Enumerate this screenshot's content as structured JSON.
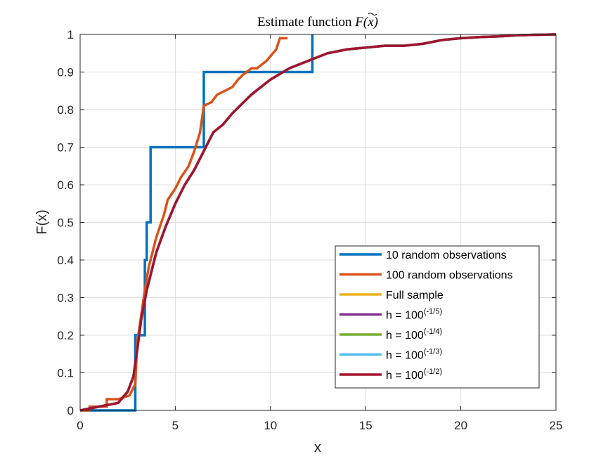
{
  "chart_data": {
    "type": "line",
    "title_prefix": "Estimate function ",
    "title_math": "F(x)",
    "xlabel": "x",
    "ylabel": "F(x)",
    "xlim": [
      0,
      25
    ],
    "ylim": [
      0,
      1
    ],
    "xticks": [
      "0",
      "5",
      "10",
      "15",
      "20",
      "25"
    ],
    "yticks": [
      "0",
      "0.1",
      "0.2",
      "0.3",
      "0.4",
      "0.5",
      "0.6",
      "0.7",
      "0.8",
      "0.9",
      "1"
    ],
    "grid": true,
    "legend_position": "bottom-right",
    "series": [
      {
        "name": "10 random observations",
        "color": "#0072BD",
        "style": "step",
        "x": [
          0,
          2.9,
          2.9,
          3.4,
          3.4,
          3.5,
          3.5,
          3.7,
          3.7,
          6.5,
          6.5,
          12.2,
          12.2
        ],
        "y": [
          0,
          0,
          0.2,
          0.2,
          0.4,
          0.4,
          0.5,
          0.5,
          0.7,
          0.7,
          0.9,
          0.9,
          1.0
        ]
      },
      {
        "name": "100 random observations",
        "color": "#D95319",
        "style": "step",
        "x": [
          0,
          0.5,
          0.5,
          1.4,
          1.4,
          2.0,
          2.6,
          2.9,
          3.0,
          3.2,
          3.4,
          3.6,
          3.8,
          4.0,
          4.2,
          4.4,
          4.6,
          5.0,
          5.3,
          5.7,
          6.0,
          6.3,
          6.5,
          6.9,
          7.2,
          7.6,
          8.0,
          8.3,
          8.5,
          9.0,
          9.3,
          9.8,
          10.3,
          10.5,
          10.9
        ],
        "y": [
          0,
          0,
          0.01,
          0.01,
          0.03,
          0.03,
          0.04,
          0.07,
          0.18,
          0.25,
          0.32,
          0.38,
          0.42,
          0.46,
          0.49,
          0.52,
          0.56,
          0.59,
          0.62,
          0.65,
          0.69,
          0.74,
          0.81,
          0.82,
          0.84,
          0.85,
          0.86,
          0.88,
          0.89,
          0.91,
          0.91,
          0.93,
          0.96,
          0.99,
          0.99
        ]
      },
      {
        "name": "Full sample",
        "color": "#EDB120",
        "style": "line",
        "x": [
          0,
          1.0,
          2.0,
          2.5,
          2.8,
          3.0,
          3.2,
          3.5,
          3.8,
          4.0,
          4.5,
          5.0,
          5.5,
          6.0,
          6.5,
          7.0,
          7.5,
          8.0,
          9.0,
          10.0,
          11.0,
          12.0,
          13.0,
          14.0,
          15.0,
          16.0,
          17.0,
          18.0,
          19.0,
          20.0,
          21.0,
          22.0,
          23.0,
          24.0,
          25.0
        ],
        "y": [
          0,
          0.01,
          0.02,
          0.05,
          0.09,
          0.16,
          0.24,
          0.32,
          0.38,
          0.42,
          0.49,
          0.55,
          0.6,
          0.64,
          0.69,
          0.74,
          0.76,
          0.79,
          0.84,
          0.88,
          0.91,
          0.93,
          0.95,
          0.96,
          0.965,
          0.97,
          0.97,
          0.975,
          0.985,
          0.99,
          0.993,
          0.995,
          0.998,
          0.999,
          1.0
        ]
      },
      {
        "name": "h = 100",
        "sup": "(-1/5)",
        "color": "#7E2F8E",
        "style": "line",
        "x": [
          0,
          1.0,
          2.0,
          2.5,
          2.8,
          3.0,
          3.2,
          3.5,
          3.8,
          4.0,
          4.5,
          5.0,
          5.5,
          6.0,
          6.5,
          7.0,
          7.5,
          8.0,
          9.0,
          10.0,
          11.0,
          12.0,
          13.0,
          14.0,
          15.0,
          16.0,
          17.0,
          18.0,
          19.0,
          20.0,
          21.0,
          22.0,
          23.0,
          24.0,
          25.0
        ],
        "y": [
          0,
          0.01,
          0.02,
          0.05,
          0.09,
          0.16,
          0.24,
          0.32,
          0.38,
          0.42,
          0.49,
          0.55,
          0.6,
          0.64,
          0.69,
          0.74,
          0.76,
          0.79,
          0.84,
          0.88,
          0.91,
          0.93,
          0.95,
          0.96,
          0.965,
          0.97,
          0.97,
          0.975,
          0.985,
          0.99,
          0.993,
          0.995,
          0.998,
          0.999,
          1.0
        ]
      },
      {
        "name": "h = 100",
        "sup": "(-1/4)",
        "color": "#77AC30",
        "style": "line",
        "x": [
          0,
          1.0,
          2.0,
          2.5,
          2.8,
          3.0,
          3.2,
          3.5,
          3.8,
          4.0,
          4.5,
          5.0,
          5.5,
          6.0,
          6.5,
          7.0,
          7.5,
          8.0,
          9.0,
          10.0,
          11.0,
          12.0,
          13.0,
          14.0,
          15.0,
          16.0,
          17.0,
          18.0,
          19.0,
          20.0,
          21.0,
          22.0,
          23.0,
          24.0,
          25.0
        ],
        "y": [
          0,
          0.01,
          0.02,
          0.05,
          0.09,
          0.16,
          0.24,
          0.32,
          0.38,
          0.42,
          0.49,
          0.55,
          0.6,
          0.64,
          0.69,
          0.74,
          0.76,
          0.79,
          0.84,
          0.88,
          0.91,
          0.93,
          0.95,
          0.96,
          0.965,
          0.97,
          0.97,
          0.975,
          0.985,
          0.99,
          0.993,
          0.995,
          0.998,
          0.999,
          1.0
        ]
      },
      {
        "name": "h = 100",
        "sup": "(-1/3)",
        "color": "#4DBEEE",
        "style": "line",
        "x": [
          0,
          1.0,
          2.0,
          2.5,
          2.8,
          3.0,
          3.2,
          3.5,
          3.8,
          4.0,
          4.5,
          5.0,
          5.5,
          6.0,
          6.5,
          7.0,
          7.5,
          8.0,
          9.0,
          10.0,
          11.0,
          12.0,
          13.0,
          14.0,
          15.0,
          16.0,
          17.0,
          18.0,
          19.0,
          20.0,
          21.0,
          22.0,
          23.0,
          24.0,
          25.0
        ],
        "y": [
          0,
          0.01,
          0.02,
          0.05,
          0.09,
          0.16,
          0.24,
          0.32,
          0.38,
          0.42,
          0.49,
          0.55,
          0.6,
          0.64,
          0.69,
          0.74,
          0.76,
          0.79,
          0.84,
          0.88,
          0.91,
          0.93,
          0.95,
          0.96,
          0.965,
          0.97,
          0.97,
          0.975,
          0.985,
          0.99,
          0.993,
          0.995,
          0.998,
          0.999,
          1.0
        ]
      },
      {
        "name": "h = 100",
        "sup": "(-1/2)",
        "color": "#A2142F",
        "style": "line",
        "x": [
          0,
          1.0,
          2.0,
          2.5,
          2.8,
          3.0,
          3.2,
          3.5,
          3.8,
          4.0,
          4.5,
          5.0,
          5.5,
          6.0,
          6.5,
          7.0,
          7.5,
          8.0,
          9.0,
          10.0,
          11.0,
          12.0,
          13.0,
          14.0,
          15.0,
          16.0,
          17.0,
          18.0,
          19.0,
          20.0,
          21.0,
          22.0,
          23.0,
          24.0,
          25.0
        ],
        "y": [
          0,
          0.01,
          0.02,
          0.05,
          0.09,
          0.16,
          0.24,
          0.32,
          0.38,
          0.42,
          0.49,
          0.55,
          0.6,
          0.64,
          0.69,
          0.74,
          0.76,
          0.79,
          0.84,
          0.88,
          0.91,
          0.93,
          0.95,
          0.96,
          0.965,
          0.97,
          0.97,
          0.975,
          0.985,
          0.99,
          0.993,
          0.995,
          0.998,
          0.999,
          1.0
        ]
      }
    ]
  }
}
